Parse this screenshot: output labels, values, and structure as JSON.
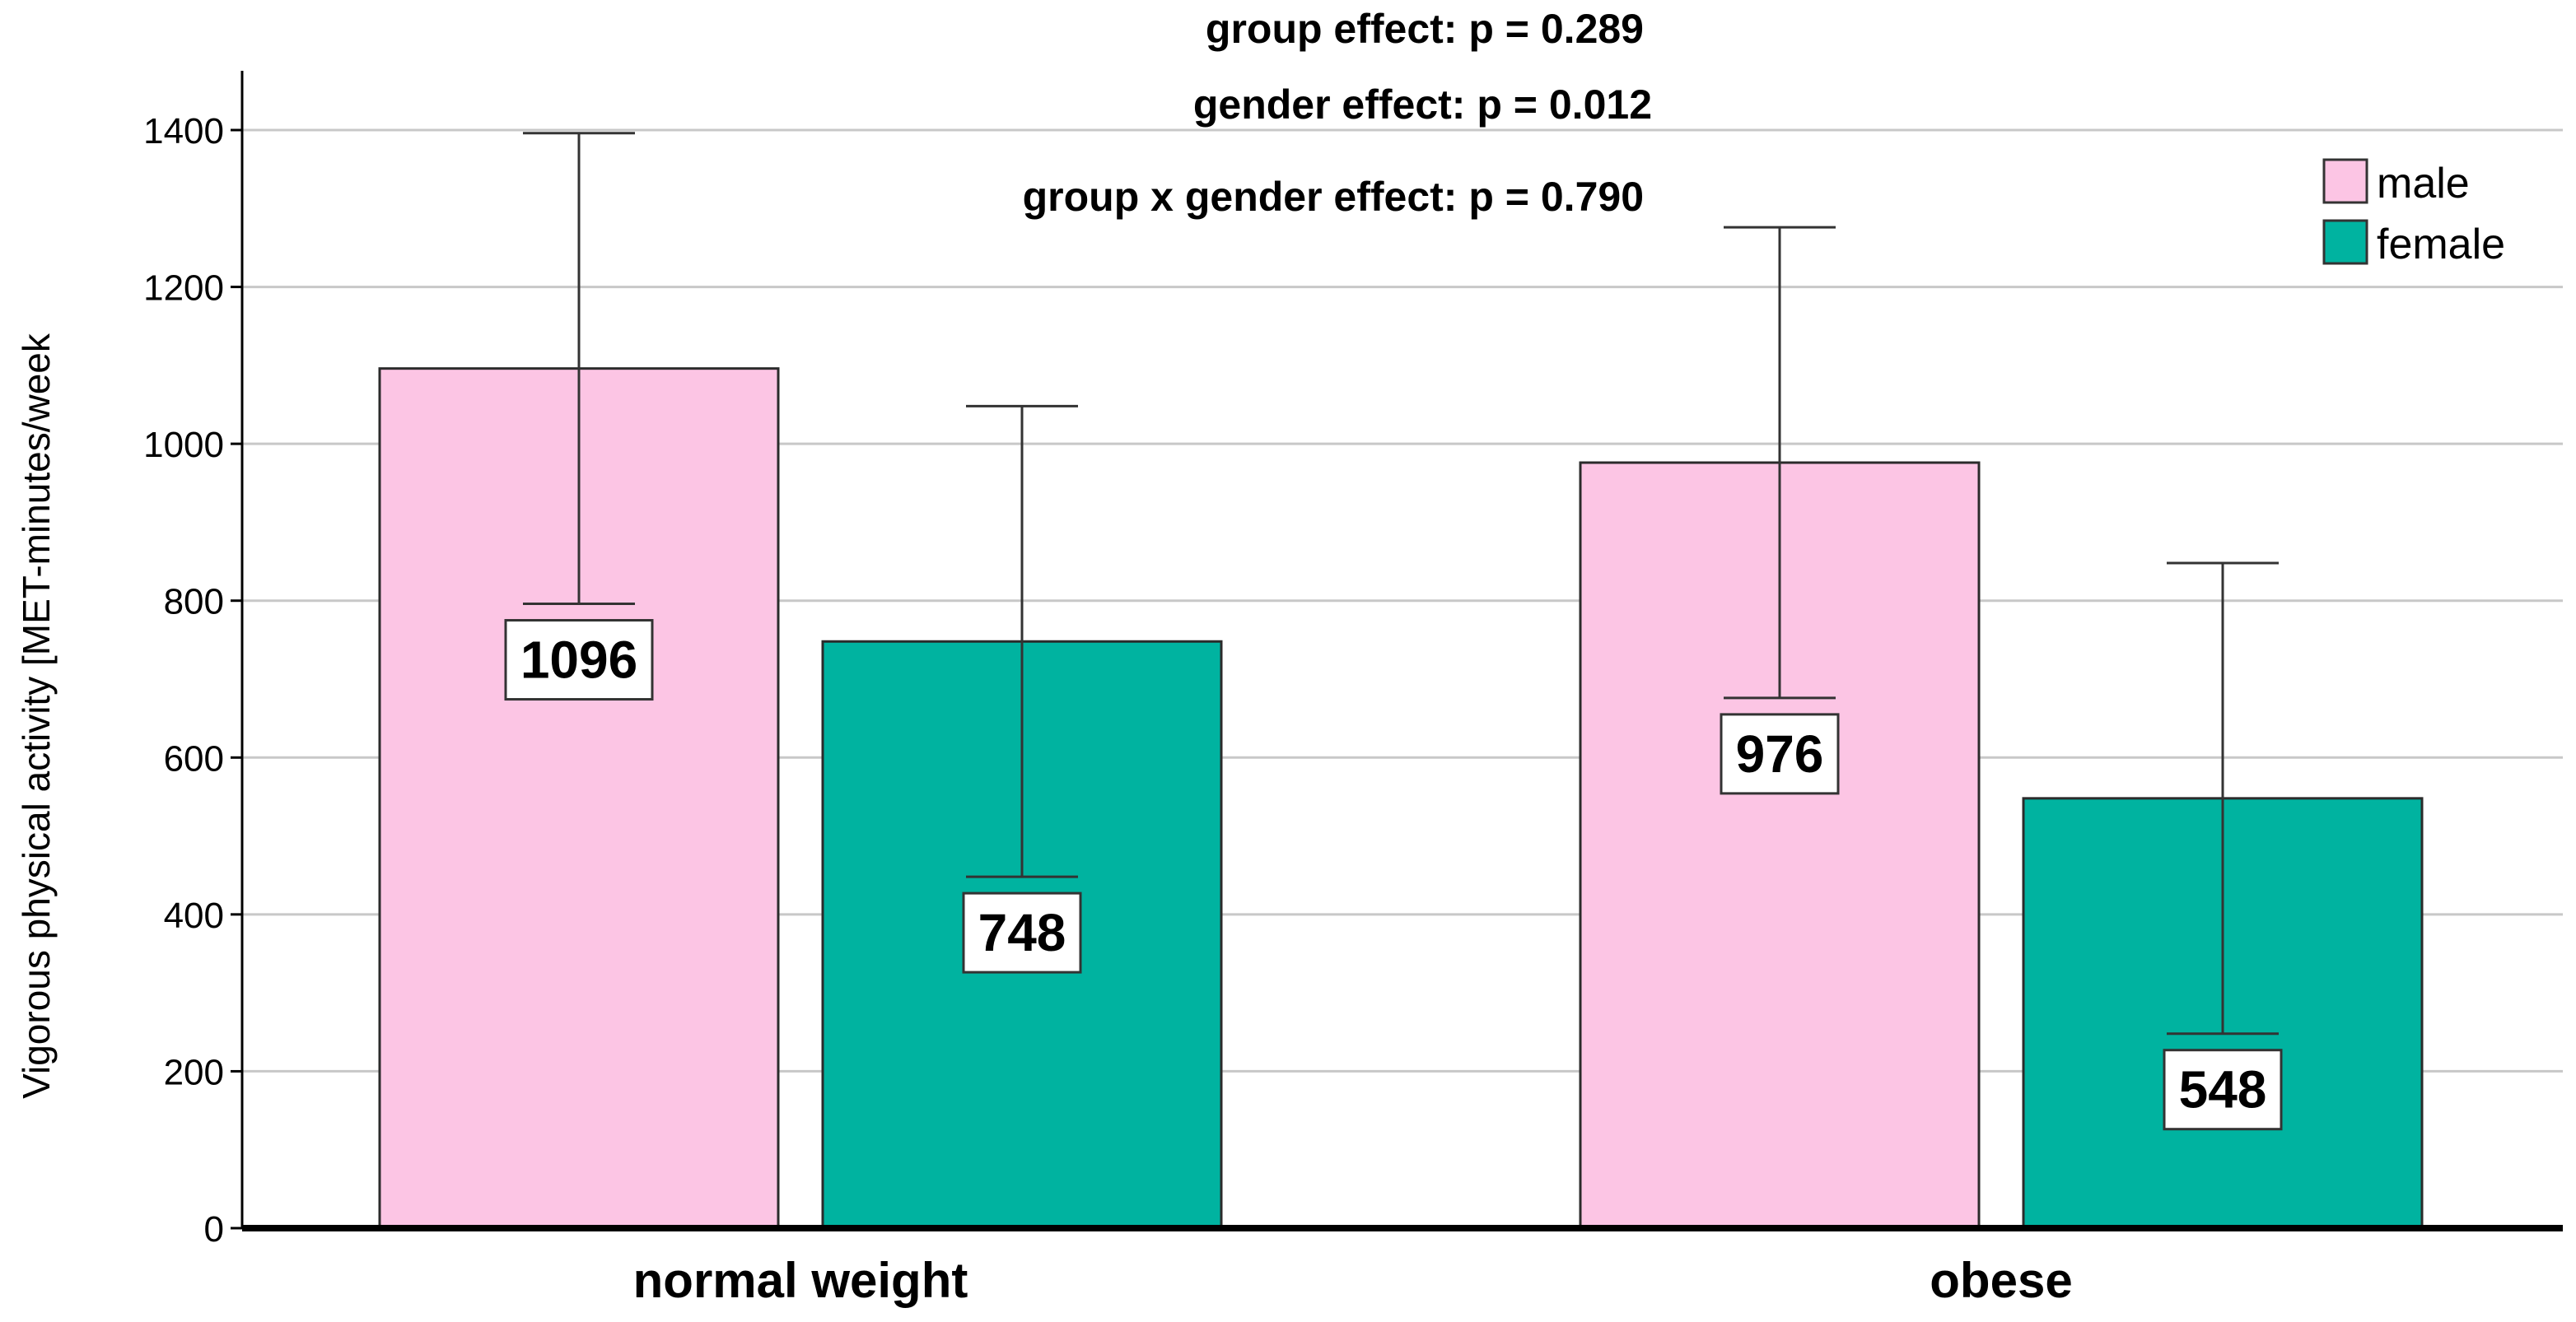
{
  "chart_data": {
    "type": "bar",
    "categories": [
      "normal weight",
      "obese"
    ],
    "series": [
      {
        "name": "male",
        "color": "#FCC5E4",
        "values": [
          1096,
          976
        ],
        "error_upper": [
          1396,
          1276
        ],
        "error_lower": [
          796,
          676
        ]
      },
      {
        "name": "female",
        "color": "#00B3A0",
        "values": [
          748,
          548
        ],
        "error_upper": [
          1048,
          848
        ],
        "error_lower": [
          448,
          248
        ]
      }
    ],
    "ylabel": "Vigorous physical activity [MET-minutes/week",
    "xlabel": "",
    "ylim": [
      0,
      1480
    ],
    "yticks": [
      0,
      200,
      400,
      600,
      800,
      1000,
      1200,
      1400
    ],
    "grid": true,
    "legend_position": "top-right",
    "annotations": [
      "group effect: p = 0.289",
      "gender effect: p = 0.012",
      "group x gender effect: p = 0.790"
    ]
  }
}
